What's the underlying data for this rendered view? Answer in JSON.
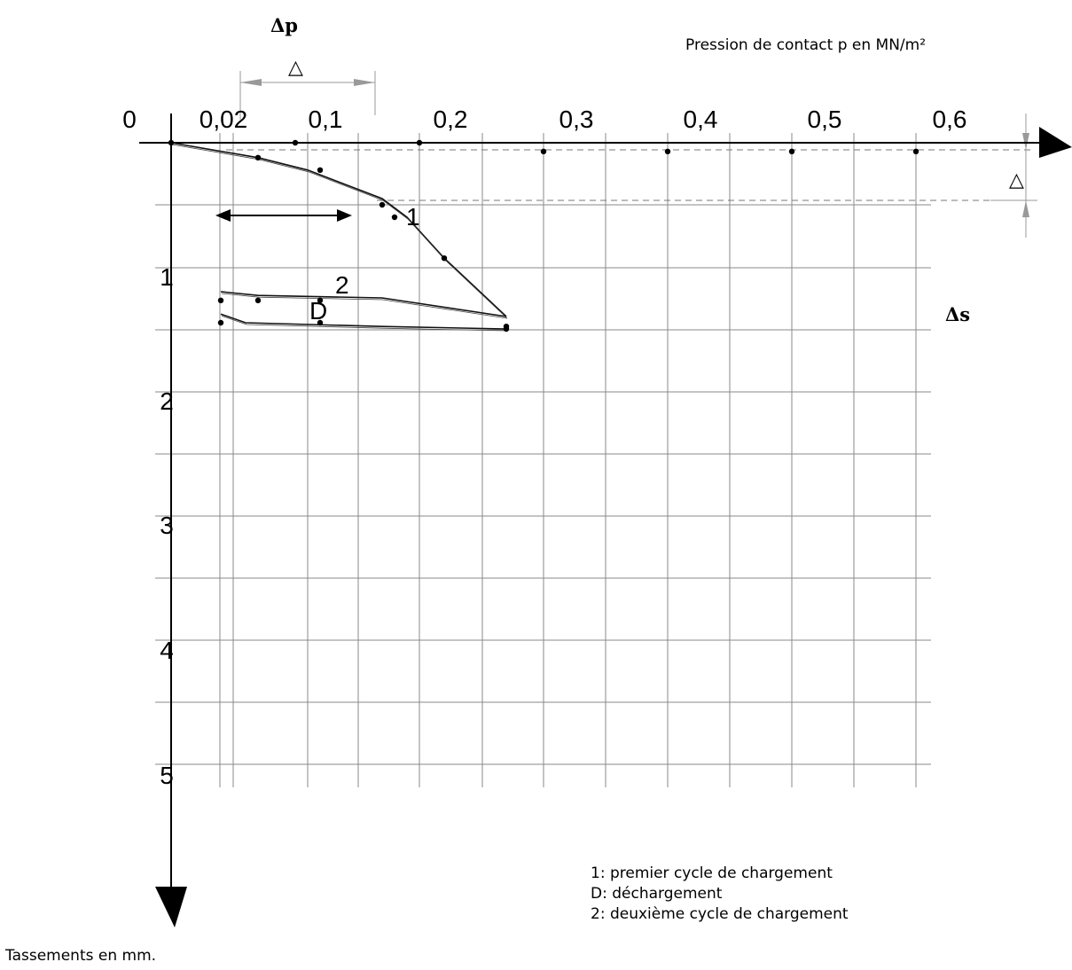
{
  "chart_data": {
    "type": "line",
    "title": "",
    "xlabel": "Pression de contact p en MN/m²",
    "ylabel": "Tassements en mm.",
    "x_ticks": [
      "0",
      "0,02",
      "0,1",
      "0,2",
      "0,3",
      "0,4",
      "0,5",
      "0,6"
    ],
    "y_ticks": [
      "1",
      "2",
      "3",
      "4",
      "5"
    ],
    "xlim": [
      0,
      0.65
    ],
    "ylim": [
      0,
      6
    ],
    "grid": true,
    "series": [
      {
        "name": "1",
        "points": [
          {
            "x": 0.0,
            "y": 0.0
          },
          {
            "x": 0.07,
            "y": 0.12
          },
          {
            "x": 0.11,
            "y": 0.22
          },
          {
            "x": 0.17,
            "y": 0.45
          },
          {
            "x": 0.19,
            "y": 0.6
          },
          {
            "x": 0.22,
            "y": 0.93
          },
          {
            "x": 0.27,
            "y": 1.4
          }
        ]
      },
      {
        "name": "D",
        "points": [
          {
            "x": 0.27,
            "y": 1.5
          },
          {
            "x": 0.17,
            "y": 1.48
          },
          {
            "x": 0.06,
            "y": 1.45
          },
          {
            "x": 0.04,
            "y": 1.38
          }
        ]
      },
      {
        "name": "2",
        "points": [
          {
            "x": 0.04,
            "y": 1.2
          },
          {
            "x": 0.07,
            "y": 1.23
          },
          {
            "x": 0.17,
            "y": 1.25
          },
          {
            "x": 0.27,
            "y": 1.4
          }
        ]
      }
    ],
    "dots": [
      {
        "x": 0.0,
        "y": 0.0
      },
      {
        "x": 0.1,
        "y": 0.0
      },
      {
        "x": 0.2,
        "y": 0.0
      },
      {
        "x": 0.3,
        "y": 0.07
      },
      {
        "x": 0.4,
        "y": 0.07
      },
      {
        "x": 0.5,
        "y": 0.07
      },
      {
        "x": 0.6,
        "y": 0.07
      },
      {
        "x": 0.07,
        "y": 0.12
      },
      {
        "x": 0.12,
        "y": 0.22
      },
      {
        "x": 0.17,
        "y": 0.5
      },
      {
        "x": 0.18,
        "y": 0.6
      },
      {
        "x": 0.22,
        "y": 0.93
      },
      {
        "x": 0.27,
        "y": 1.48
      },
      {
        "x": 0.27,
        "y": 1.5
      },
      {
        "x": 0.04,
        "y": 1.27
      },
      {
        "x": 0.07,
        "y": 1.27
      },
      {
        "x": 0.12,
        "y": 1.27
      },
      {
        "x": 0.04,
        "y": 1.45
      },
      {
        "x": 0.12,
        "y": 1.45
      }
    ],
    "annotations": {
      "delta_p": "Δp",
      "delta_s": "Δs",
      "triangle": "△",
      "curve_label_1": "1",
      "curve_label_2": "2",
      "curve_label_D": "D"
    },
    "legend": [
      "1: premier cycle de chargement",
      "D: déchargement",
      "2: deuxième cycle de chargement"
    ]
  }
}
